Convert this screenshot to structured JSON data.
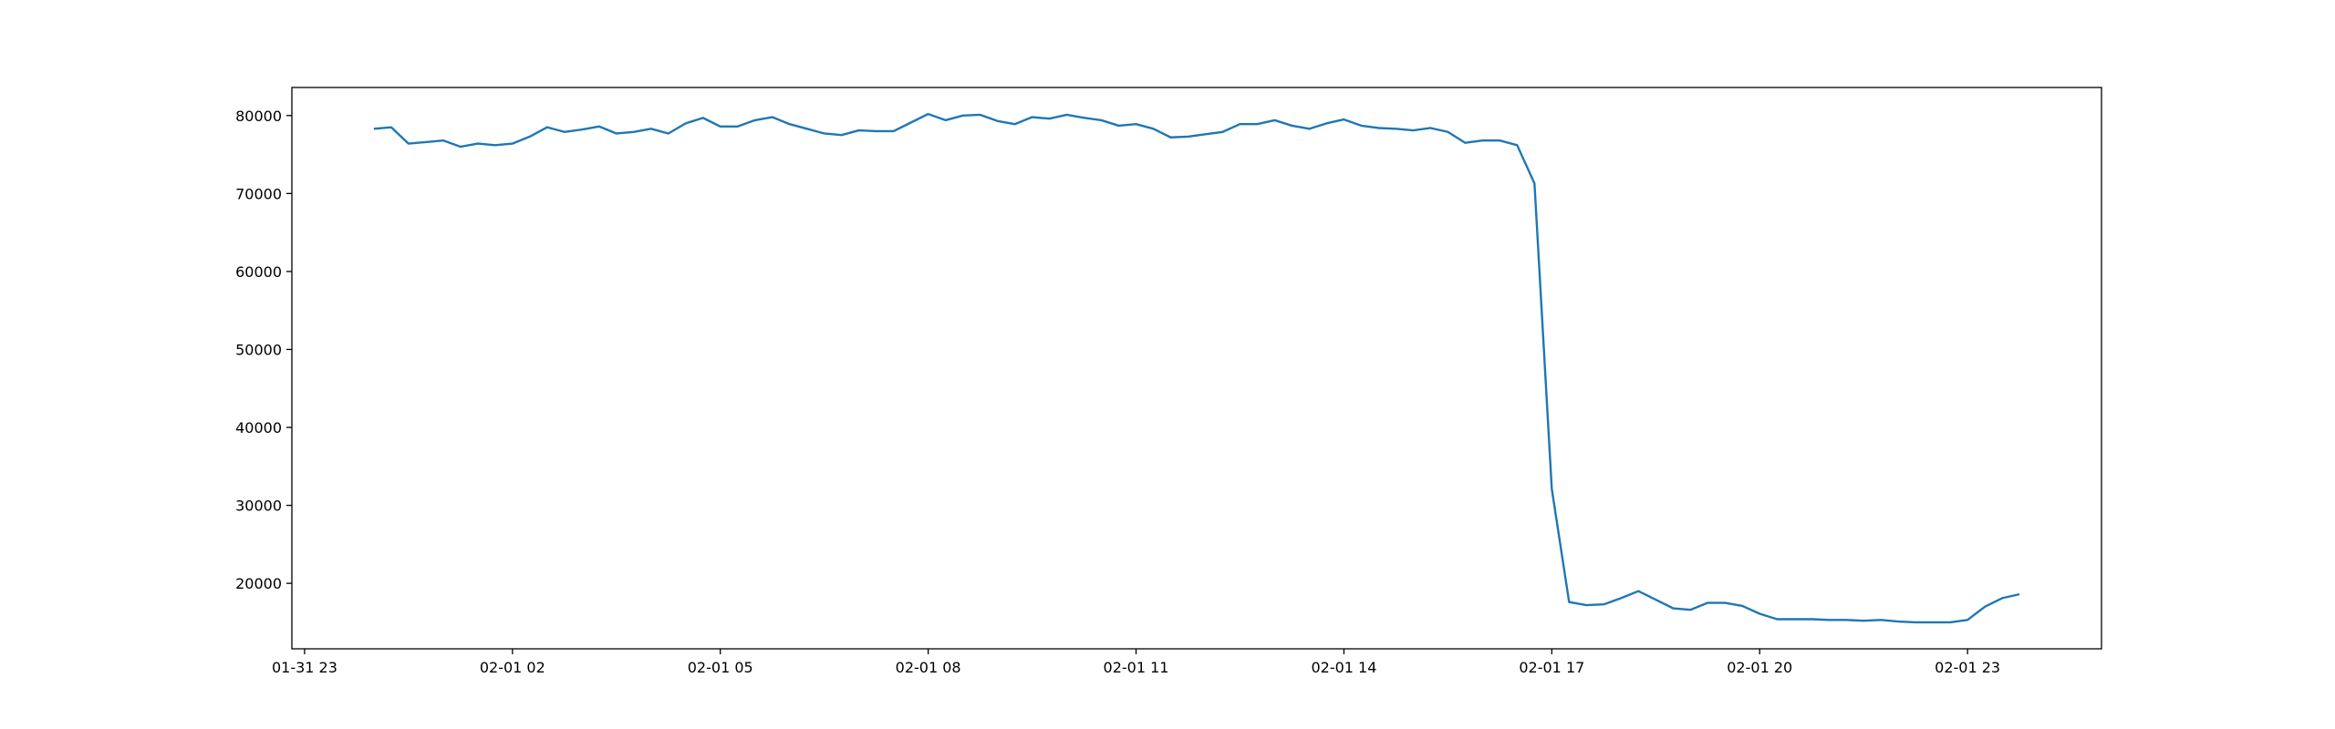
{
  "chart_data": {
    "type": "line",
    "x": [
      "02-01 00:00",
      "02-01 00:15",
      "02-01 00:30",
      "02-01 00:45",
      "02-01 01:00",
      "02-01 01:15",
      "02-01 01:30",
      "02-01 01:45",
      "02-01 02:00",
      "02-01 02:15",
      "02-01 02:30",
      "02-01 02:45",
      "02-01 03:00",
      "02-01 03:15",
      "02-01 03:30",
      "02-01 03:45",
      "02-01 04:00",
      "02-01 04:15",
      "02-01 04:30",
      "02-01 04:45",
      "02-01 05:00",
      "02-01 05:15",
      "02-01 05:30",
      "02-01 05:45",
      "02-01 06:00",
      "02-01 06:15",
      "02-01 06:30",
      "02-01 06:45",
      "02-01 07:00",
      "02-01 07:15",
      "02-01 07:30",
      "02-01 07:45",
      "02-01 08:00",
      "02-01 08:15",
      "02-01 08:30",
      "02-01 08:45",
      "02-01 09:00",
      "02-01 09:15",
      "02-01 09:30",
      "02-01 09:45",
      "02-01 10:00",
      "02-01 10:15",
      "02-01 10:30",
      "02-01 10:45",
      "02-01 11:00",
      "02-01 11:15",
      "02-01 11:30",
      "02-01 11:45",
      "02-01 12:00",
      "02-01 12:15",
      "02-01 12:30",
      "02-01 12:45",
      "02-01 13:00",
      "02-01 13:15",
      "02-01 13:30",
      "02-01 13:45",
      "02-01 14:00",
      "02-01 14:15",
      "02-01 14:30",
      "02-01 14:45",
      "02-01 15:00",
      "02-01 15:15",
      "02-01 15:30",
      "02-01 15:45",
      "02-01 16:00",
      "02-01 16:15",
      "02-01 16:30",
      "02-01 16:45",
      "02-01 17:00",
      "02-01 17:15",
      "02-01 17:30",
      "02-01 17:45",
      "02-01 18:00",
      "02-01 18:15",
      "02-01 18:30",
      "02-01 18:45",
      "02-01 19:00",
      "02-01 19:15",
      "02-01 19:30",
      "02-01 19:45",
      "02-01 20:00",
      "02-01 20:15",
      "02-01 20:30",
      "02-01 20:45",
      "02-01 21:00",
      "02-01 21:15",
      "02-01 21:30",
      "02-01 21:45",
      "02-01 22:00",
      "02-01 22:15",
      "02-01 22:30",
      "02-01 22:45",
      "02-01 23:00",
      "02-01 23:15",
      "02-01 23:30",
      "02-01 23:45"
    ],
    "series": [
      {
        "color": "#1f77b4",
        "values": [
          78300,
          78500,
          76400,
          76600,
          76800,
          76000,
          76400,
          76200,
          76400,
          77300,
          78500,
          77900,
          78200,
          78600,
          77700,
          77900,
          78300,
          77700,
          79000,
          79700,
          78600,
          78600,
          79400,
          79800,
          78900,
          78300,
          77700,
          77500,
          78100,
          78000,
          78000,
          79100,
          80200,
          79400,
          80000,
          80100,
          79300,
          78900,
          79800,
          79600,
          80100,
          79700,
          79400,
          78700,
          78900,
          78300,
          77200,
          77300,
          77600,
          77900,
          78900,
          78900,
          79400,
          78700,
          78300,
          79000,
          79500,
          78700,
          78400,
          78300,
          78100,
          78400,
          77900,
          76500,
          76800,
          76800,
          76200,
          71300,
          32100,
          17600,
          17200,
          17300,
          18100,
          19000,
          17900,
          16800,
          16600,
          17500,
          17500,
          17100,
          16100,
          15400,
          15400,
          15400,
          15300,
          15300,
          15200,
          15300,
          15100,
          15000,
          15000,
          15000,
          15300,
          17000,
          18100,
          18600
        ]
      }
    ],
    "xlim": [
      "01-31 22:49",
      "02-02 00:56"
    ],
    "xticks": [
      {
        "value": "01-31 23:00",
        "label": "01-31 23"
      },
      {
        "value": "02-01 02:00",
        "label": "02-01 02"
      },
      {
        "value": "02-01 05:00",
        "label": "02-01 05"
      },
      {
        "value": "02-01 08:00",
        "label": "02-01 08"
      },
      {
        "value": "02-01 11:00",
        "label": "02-01 11"
      },
      {
        "value": "02-01 14:00",
        "label": "02-01 14"
      },
      {
        "value": "02-01 17:00",
        "label": "02-01 17"
      },
      {
        "value": "02-01 20:00",
        "label": "02-01 20"
      },
      {
        "value": "02-01 23:00",
        "label": "02-01 23"
      }
    ],
    "ylim": [
      11600,
      83600
    ],
    "yticks": [
      20000,
      30000,
      40000,
      50000,
      60000,
      70000,
      80000
    ]
  }
}
